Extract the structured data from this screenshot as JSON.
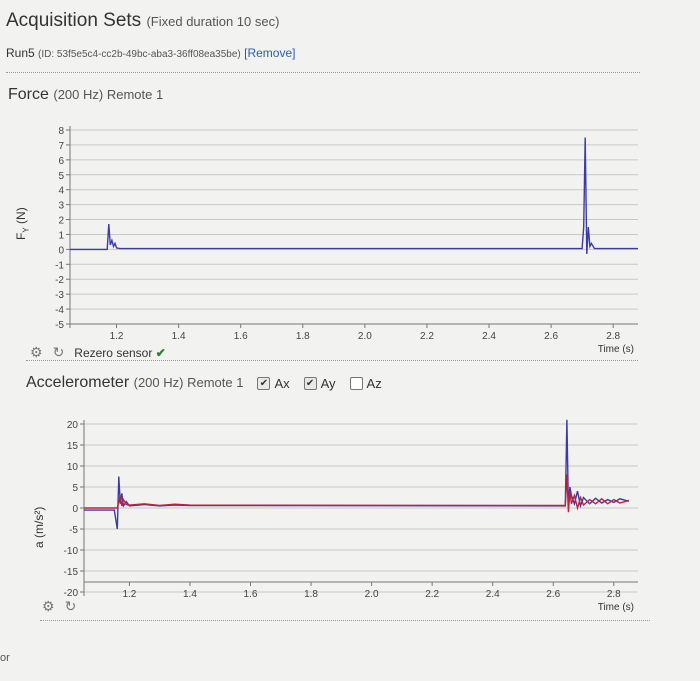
{
  "header": {
    "title": "Acquisition Sets",
    "title_sub": "(Fixed duration 10 sec)",
    "run_name": "Run5",
    "run_id": "(ID: 53f5e5c4-cc2b-49bc-aba3-36ff08ea35be)",
    "remove_label": "[Remove]"
  },
  "force": {
    "title": "Force",
    "title_sub": "(200 Hz) Remote 1",
    "ylabel_main": "F",
    "ylabel_subscript": "Y",
    "ylabel_unit": "(N)",
    "rezero_label": "Rezero sensor",
    "check_glyph": "✔",
    "gear_glyph": "⚙",
    "refresh_glyph": "↻"
  },
  "accel": {
    "title": "Accelerometer",
    "title_sub": "(200 Hz) Remote 1",
    "ylabel": "a (m/s²)",
    "cb_ax": "Ax",
    "cb_ay": "Ay",
    "cb_az": "Az",
    "gear_glyph": "⚙",
    "refresh_glyph": "↻"
  },
  "footer": {
    "edge_text": "or"
  },
  "colors": {
    "fy": "#3b3ba8",
    "ax": "#3b3ba8",
    "ay": "#c0203a"
  },
  "icons": [
    "gear-icon",
    "refresh-icon",
    "check-icon",
    "checkbox-icon"
  ],
  "chart_data": [
    {
      "type": "line",
      "title": "Force",
      "xlabel": "Time (s)",
      "ylabel": "Fy (N)",
      "xlim": [
        1.05,
        2.88
      ],
      "ylim": [
        -5,
        8
      ],
      "x_ticks": [
        1.2,
        1.4,
        1.6,
        1.8,
        2.0,
        2.2,
        2.4,
        2.6,
        2.8
      ],
      "x_tick_labels": [
        "1.2",
        "1.4",
        "1.6",
        "1.8",
        "2.0",
        "2.2",
        "2.4",
        "2.6",
        "2.8"
      ],
      "y_ticks": [
        8,
        7,
        6,
        5,
        4,
        3,
        2,
        1,
        0,
        -1,
        -2,
        -3,
        -4,
        -5
      ],
      "y_tick_labels": [
        "8",
        "7",
        "6",
        "5",
        "4",
        "3",
        "2",
        "1",
        "0",
        "-1",
        "-2",
        "-3",
        "-4",
        "-5"
      ],
      "grid": true,
      "series": [
        {
          "color": "#3b3ba8",
          "x": [
            1.05,
            1.17,
            1.175,
            1.18,
            1.185,
            1.19,
            1.195,
            1.2,
            1.21,
            1.22,
            2.7,
            2.705,
            2.71,
            2.715,
            2.72,
            2.725,
            2.73,
            2.74,
            2.75,
            2.88
          ],
          "y": [
            0,
            0,
            1.7,
            0.3,
            0.6,
            0.2,
            0.4,
            0.1,
            0.05,
            0.05,
            0.05,
            1.5,
            7.5,
            -0.3,
            1.5,
            0.2,
            0.4,
            0.05,
            0.05,
            0.05
          ]
        }
      ]
    },
    {
      "type": "line",
      "title": "Accelerometer",
      "xlabel": "Time (s)",
      "ylabel": "a (m/s²)",
      "xlim": [
        1.05,
        2.88
      ],
      "ylim": [
        -20,
        20
      ],
      "x_ticks": [
        1.2,
        1.4,
        1.6,
        1.8,
        2.0,
        2.2,
        2.4,
        2.6,
        2.8
      ],
      "x_tick_labels": [
        "1.2",
        "1.4",
        "1.6",
        "1.8",
        "2.0",
        "2.2",
        "2.4",
        "2.6",
        "2.8"
      ],
      "y_ticks": [
        20,
        15,
        10,
        5,
        0,
        -5,
        -10,
        -15,
        -20
      ],
      "y_tick_labels": [
        "20",
        "15",
        "10",
        "5",
        "0",
        "-5",
        "-10",
        "-15",
        "-20"
      ],
      "grid": true,
      "series": [
        {
          "name": "Ax",
          "color": "#3b3ba8",
          "x": [
            1.05,
            1.15,
            1.16,
            1.165,
            1.17,
            1.175,
            1.18,
            1.19,
            1.2,
            1.25,
            1.3,
            1.35,
            1.4,
            2.64,
            2.645,
            2.65,
            2.655,
            2.66,
            2.67,
            2.68,
            2.69,
            2.7,
            2.72,
            2.74,
            2.76,
            2.78,
            2.8,
            2.82,
            2.85
          ],
          "y": [
            -0.5,
            -0.5,
            -5,
            7.5,
            1,
            3.5,
            0.5,
            1.5,
            0.5,
            0.8,
            0.5,
            0.7,
            0.6,
            0.5,
            21,
            0,
            5,
            3,
            1,
            4,
            0.5,
            2.5,
            1,
            2.3,
            1.2,
            2,
            1.3,
            2.2,
            1.6
          ]
        },
        {
          "name": "Ay",
          "color": "#c0203a",
          "x": [
            1.05,
            1.16,
            1.17,
            1.175,
            1.18,
            1.19,
            1.2,
            1.25,
            1.3,
            1.35,
            1.4,
            2.64,
            2.645,
            2.65,
            2.655,
            2.66,
            2.67,
            2.68,
            2.69,
            2.7,
            2.72,
            2.74,
            2.76,
            2.78,
            2.8,
            2.82,
            2.85
          ],
          "y": [
            0,
            0,
            3,
            0.5,
            2,
            0.8,
            0.7,
            1,
            0.6,
            0.9,
            0.7,
            0.6,
            8,
            -1,
            4,
            1,
            3,
            0,
            2.5,
            0.7,
            2,
            1,
            2.2,
            1,
            2,
            1.2,
            1.8
          ]
        }
      ]
    }
  ]
}
